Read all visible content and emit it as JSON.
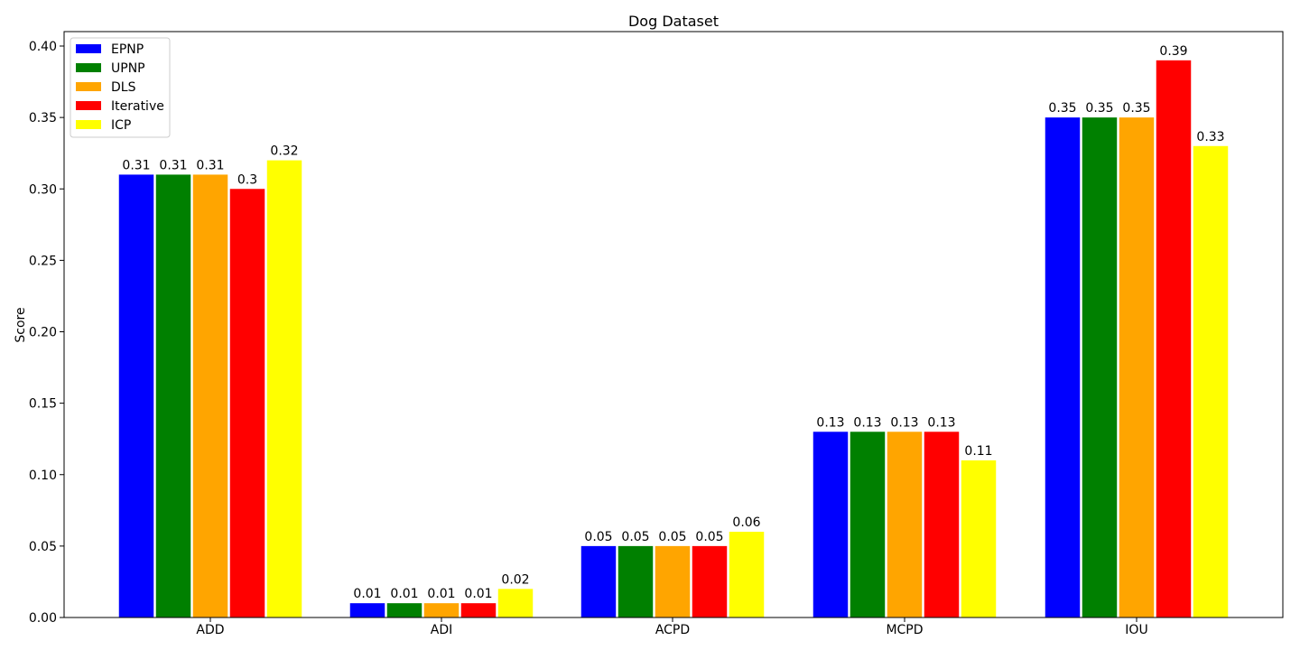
{
  "chart_data": {
    "type": "bar",
    "title": "Dog Dataset",
    "xlabel": "",
    "ylabel": "Score",
    "categories": [
      "ADD",
      "ADI",
      "ACPD",
      "MCPD",
      "IOU"
    ],
    "series": [
      {
        "name": "EPNP",
        "color": "#0000ff",
        "values": [
          0.31,
          0.01,
          0.05,
          0.13,
          0.35
        ],
        "labels": [
          "0.31",
          "0.01",
          "0.05",
          "0.13",
          "0.35"
        ]
      },
      {
        "name": "UPNP",
        "color": "#008000",
        "values": [
          0.31,
          0.01,
          0.05,
          0.13,
          0.35
        ],
        "labels": [
          "0.31",
          "0.01",
          "0.05",
          "0.13",
          "0.35"
        ]
      },
      {
        "name": "DLS",
        "color": "#ffa500",
        "values": [
          0.31,
          0.01,
          0.05,
          0.13,
          0.35
        ],
        "labels": [
          "0.31",
          "0.01",
          "0.05",
          "0.13",
          "0.35"
        ]
      },
      {
        "name": "Iterative",
        "color": "#ff0000",
        "values": [
          0.3,
          0.01,
          0.05,
          0.13,
          0.39
        ],
        "labels": [
          "0.3",
          "0.01",
          "0.05",
          "0.13",
          "0.39"
        ]
      },
      {
        "name": "ICP",
        "color": "#ffff00",
        "values": [
          0.32,
          0.02,
          0.06,
          0.11,
          0.33
        ],
        "labels": [
          "0.32",
          "0.02",
          "0.06",
          "0.11",
          "0.33"
        ]
      }
    ],
    "ylim": [
      0,
      0.4
    ],
    "yticks": [
      "0.00",
      "0.05",
      "0.10",
      "0.15",
      "0.20",
      "0.25",
      "0.30",
      "0.35",
      "0.40"
    ],
    "grid": false,
    "legend_position": "top-left"
  }
}
